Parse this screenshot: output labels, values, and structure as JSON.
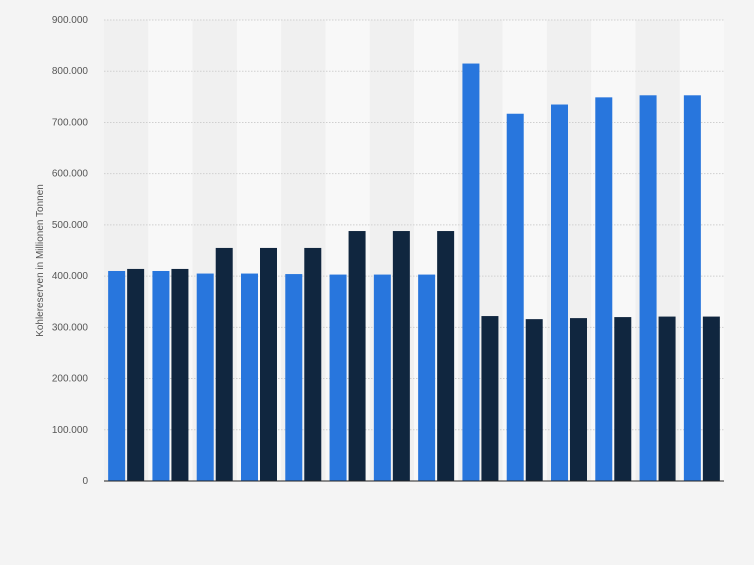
{
  "chart_data": {
    "type": "bar",
    "title": "",
    "xlabel": "",
    "ylabel": "Kohlereserven in Millionen Tonnen",
    "ylim": [
      0,
      900000
    ],
    "yticks": [
      0,
      100000,
      200000,
      300000,
      400000,
      500000,
      600000,
      700000,
      800000,
      900000
    ],
    "ytick_labels": [
      "0",
      "100.000",
      "200.000",
      "300.000",
      "400.000",
      "500.000",
      "600.000",
      "700.000",
      "800.000",
      "900.000"
    ],
    "grid": true,
    "legend": "none",
    "categories": [
      "",
      "",
      "",
      "",
      "",
      "",
      "",
      "",
      "",
      "",
      "",
      "",
      "",
      ""
    ],
    "series": [
      {
        "color": "#2876dd",
        "values": [
          410000,
          410000,
          405000,
          405000,
          404000,
          403000,
          403000,
          403000,
          815000,
          717000,
          735000,
          749000,
          753000,
          753000
        ]
      },
      {
        "color": "#10263f",
        "values": [
          414000,
          414000,
          455000,
          455000,
          455000,
          488000,
          488000,
          488000,
          322000,
          316000,
          318000,
          320000,
          321000,
          321000
        ]
      }
    ]
  }
}
